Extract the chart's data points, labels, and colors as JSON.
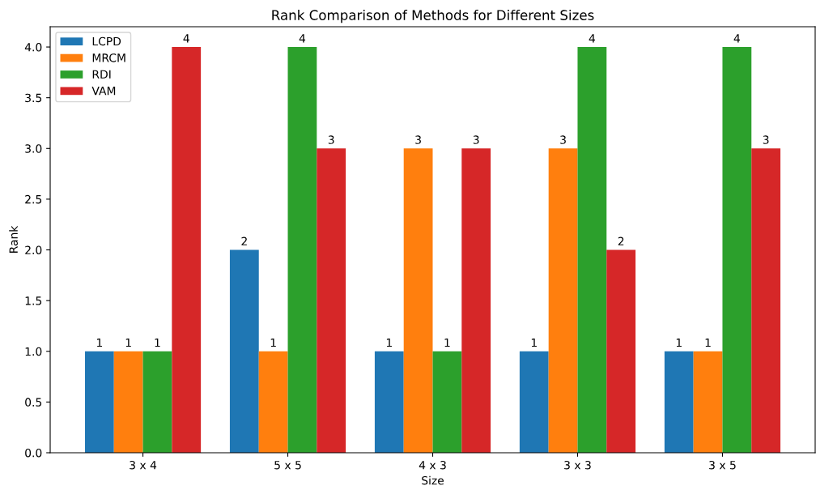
{
  "chart_data": {
    "type": "bar",
    "title": "Rank Comparison of Methods for Different Sizes",
    "xlabel": "Size",
    "ylabel": "Rank",
    "categories": [
      "3 x 4",
      "5 x 5",
      "4 x 3",
      "3 x 3",
      "3 x 5"
    ],
    "series": [
      {
        "name": "LCPD",
        "color": "#1f77b4",
        "values": [
          1,
          2,
          1,
          1,
          1
        ]
      },
      {
        "name": "MRCM",
        "color": "#ff7f0e",
        "values": [
          1,
          1,
          3,
          3,
          1
        ]
      },
      {
        "name": "RDI",
        "color": "#2ca02c",
        "values": [
          1,
          4,
          1,
          4,
          4
        ]
      },
      {
        "name": "VAM",
        "color": "#d62728",
        "values": [
          4,
          3,
          3,
          2,
          3
        ]
      }
    ],
    "ylim": [
      0,
      4.2
    ],
    "yticks": [
      {
        "value": 0,
        "label": "0.0"
      },
      {
        "value": 0.5,
        "label": "0.5"
      },
      {
        "value": 1,
        "label": "1.0"
      },
      {
        "value": 1.5,
        "label": "1.5"
      },
      {
        "value": 2,
        "label": "2.0"
      },
      {
        "value": 2.5,
        "label": "2.5"
      },
      {
        "value": 3,
        "label": "3.0"
      },
      {
        "value": 3.5,
        "label": "3.5"
      },
      {
        "value": 4,
        "label": "4.0"
      }
    ],
    "data_labels": true,
    "legend": "upper left",
    "grid": false
  }
}
